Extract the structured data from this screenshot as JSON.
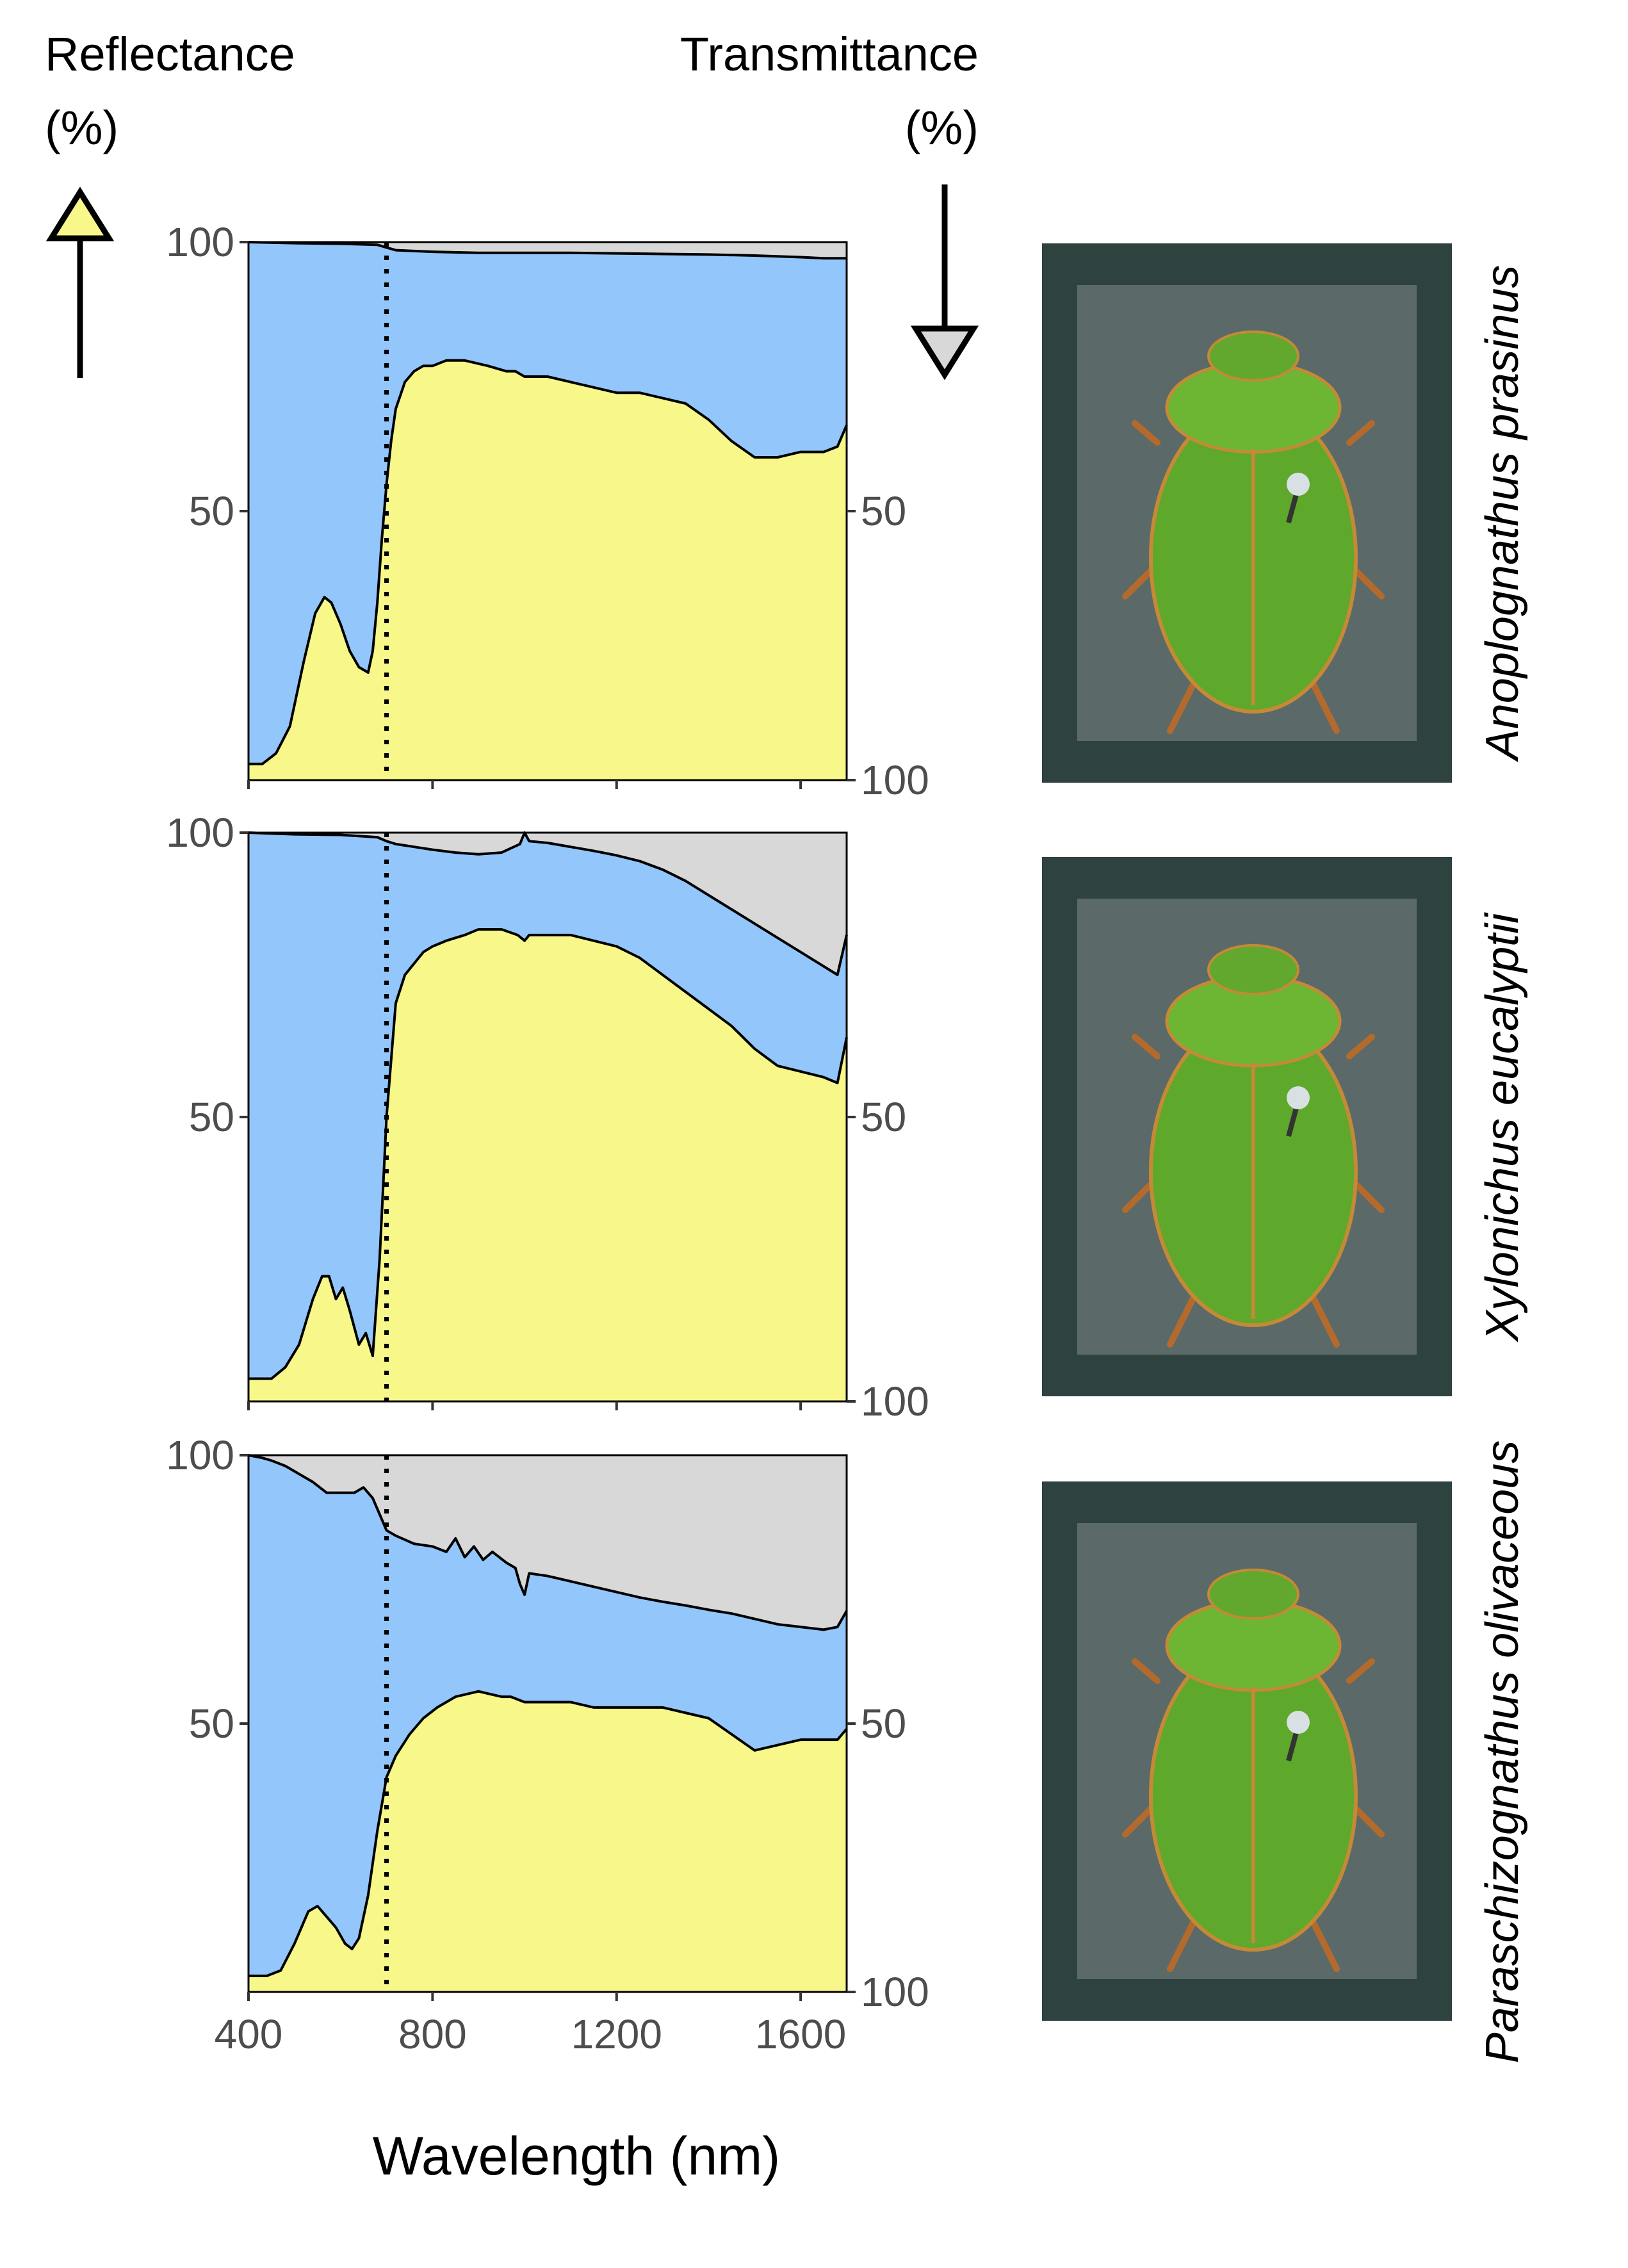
{
  "header": {
    "left_label_line1": "Reflectance",
    "left_label_line2": "(%)",
    "right_label_line1": "Transmittance",
    "right_label_line2": "(%)"
  },
  "xlabel": "Wavelength (nm)",
  "colors": {
    "reflectance": "#f8f88a",
    "absorptance": "#93c6fb",
    "transmittance": "#d8d8d8",
    "photo_frame": "#2e4240",
    "photo_background": "#5b6a68",
    "beetle_green": "#5ea82b"
  },
  "chart_data": [
    {
      "type": "area",
      "species": "Anoplognathus prasinus",
      "xlim": [
        400,
        1700
      ],
      "ylim": [
        0,
        100
      ],
      "left_axis": {
        "name": "Reflectance (%)",
        "ticks": [
          50,
          100
        ]
      },
      "right_axis": {
        "name": "Transmittance (%)",
        "inverted": true,
        "ticks": [
          50,
          100
        ]
      },
      "x_ticks": [
        400,
        800,
        1200,
        1600
      ],
      "reference_line_x": 700,
      "series": [
        {
          "name": "Reflectance",
          "x": [
            400,
            430,
            460,
            490,
            520,
            545,
            565,
            580,
            600,
            620,
            640,
            660,
            670,
            680,
            690,
            700,
            710,
            720,
            740,
            760,
            780,
            800,
            830,
            870,
            920,
            960,
            980,
            1000,
            1050,
            1100,
            1150,
            1200,
            1250,
            1300,
            1350,
            1400,
            1450,
            1500,
            1550,
            1600,
            1650,
            1680,
            1700
          ],
          "values": [
            3,
            3,
            5,
            10,
            22,
            31,
            34,
            33,
            29,
            24,
            21,
            20,
            24,
            33,
            45,
            55,
            63,
            69,
            74,
            76,
            77,
            77,
            78,
            78,
            77,
            76,
            76,
            75,
            75,
            74,
            73,
            72,
            72,
            71,
            70,
            67,
            63,
            60,
            60,
            61,
            61,
            62,
            66
          ]
        },
        {
          "name": "Transmittance",
          "x": [
            400,
            500,
            600,
            680,
            700,
            720,
            800,
            900,
            1000,
            1100,
            1200,
            1300,
            1400,
            1500,
            1600,
            1650,
            1700
          ],
          "values": [
            0,
            0.2,
            0.3,
            0.5,
            1,
            1.5,
            1.8,
            2,
            2,
            2,
            2.1,
            2.2,
            2.3,
            2.5,
            2.8,
            3,
            3
          ]
        }
      ]
    },
    {
      "type": "area",
      "species": "Xylonichus eucalyptii",
      "xlim": [
        400,
        1700
      ],
      "ylim": [
        0,
        100
      ],
      "left_axis": {
        "name": "Reflectance (%)",
        "ticks": [
          50,
          100
        ]
      },
      "right_axis": {
        "name": "Transmittance (%)",
        "inverted": true,
        "ticks": [
          50,
          100
        ]
      },
      "x_ticks": [
        400,
        800,
        1200,
        1600
      ],
      "reference_line_x": 700,
      "series": [
        {
          "name": "Reflectance",
          "x": [
            400,
            450,
            480,
            510,
            540,
            560,
            575,
            590,
            605,
            620,
            640,
            655,
            670,
            685,
            700,
            720,
            740,
            760,
            780,
            800,
            830,
            870,
            900,
            950,
            985,
            1000,
            1010,
            1050,
            1100,
            1150,
            1200,
            1250,
            1300,
            1350,
            1400,
            1450,
            1500,
            1550,
            1600,
            1650,
            1680,
            1700
          ],
          "values": [
            4,
            4,
            6,
            10,
            18,
            22,
            22,
            18,
            20,
            16,
            10,
            12,
            8,
            25,
            50,
            70,
            75,
            77,
            79,
            80,
            81,
            82,
            83,
            83,
            82,
            81,
            82,
            82,
            82,
            81,
            80,
            78,
            75,
            72,
            69,
            66,
            62,
            59,
            58,
            57,
            56,
            64
          ]
        },
        {
          "name": "Transmittance",
          "x": [
            400,
            500,
            600,
            680,
            700,
            720,
            760,
            800,
            850,
            900,
            950,
            990,
            1000,
            1010,
            1050,
            1100,
            1150,
            1200,
            1250,
            1300,
            1350,
            1400,
            1450,
            1500,
            1550,
            1600,
            1650,
            1680,
            1700
          ],
          "values": [
            0,
            0.3,
            0.4,
            0.8,
            1.5,
            2,
            2.5,
            3,
            3.5,
            3.8,
            3.5,
            2,
            0,
            1.5,
            1.8,
            2.5,
            3.2,
            4,
            5,
            6.5,
            8.5,
            11,
            13.5,
            16,
            18.5,
            21,
            23.5,
            25,
            18
          ]
        }
      ]
    },
    {
      "type": "area",
      "species": "Paraschizognathus olivaceous",
      "xlim": [
        400,
        1700
      ],
      "ylim": [
        0,
        100
      ],
      "left_axis": {
        "name": "Reflectance (%)",
        "ticks": [
          50,
          100
        ]
      },
      "right_axis": {
        "name": "Transmittance (%)",
        "inverted": true,
        "ticks": [
          50,
          100
        ]
      },
      "x_ticks": [
        400,
        800,
        1200,
        1600
      ],
      "reference_line_x": 700,
      "series": [
        {
          "name": "Reflectance",
          "x": [
            400,
            440,
            470,
            500,
            530,
            550,
            570,
            590,
            610,
            625,
            640,
            660,
            680,
            700,
            720,
            750,
            780,
            810,
            850,
            900,
            950,
            970,
            1000,
            1050,
            1100,
            1150,
            1200,
            1250,
            1300,
            1350,
            1400,
            1450,
            1500,
            1550,
            1600,
            1650,
            1680,
            1700
          ],
          "values": [
            3,
            3,
            4,
            9,
            15,
            16,
            14,
            12,
            9,
            8,
            10,
            18,
            30,
            40,
            44,
            48,
            51,
            53,
            55,
            56,
            55,
            55,
            54,
            54,
            54,
            53,
            53,
            53,
            53,
            52,
            51,
            48,
            45,
            46,
            47,
            47,
            47,
            49
          ]
        },
        {
          "name": "Transmittance",
          "x": [
            400,
            430,
            450,
            480,
            500,
            540,
            570,
            600,
            630,
            650,
            670,
            690,
            700,
            720,
            760,
            800,
            830,
            850,
            870,
            890,
            910,
            930,
            960,
            980,
            990,
            1000,
            1010,
            1050,
            1100,
            1150,
            1200,
            1250,
            1300,
            1350,
            1400,
            1450,
            1500,
            1550,
            1600,
            1650,
            1680,
            1700
          ],
          "values": [
            0,
            0.5,
            1,
            2,
            3,
            5,
            7,
            7,
            7,
            6,
            8,
            12,
            14,
            15,
            16.5,
            17,
            18,
            15.5,
            19,
            17,
            19.5,
            18,
            20,
            21,
            24,
            26,
            22,
            22.5,
            23.5,
            24.5,
            25.5,
            26.5,
            27.3,
            28,
            28.8,
            29.5,
            30.5,
            31.5,
            32,
            32.5,
            32,
            29
          ]
        }
      ]
    }
  ]
}
